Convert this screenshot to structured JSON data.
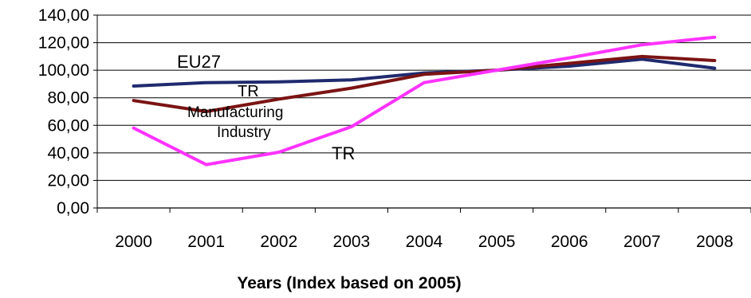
{
  "chart_data": {
    "type": "line",
    "title": "",
    "xlabel": "Years (Index based on 2005)",
    "ylabel": "",
    "categories": [
      "2000",
      "2001",
      "2002",
      "2003",
      "2004",
      "2005",
      "2006",
      "2007",
      "2008"
    ],
    "y_ticks": [
      "0,00",
      "20,00",
      "40,00",
      "60,00",
      "80,00",
      "100,00",
      "120,00",
      "140,00"
    ],
    "ylim": [
      0,
      140
    ],
    "grid": "horizontal",
    "legend": "none (inline labels)",
    "series": [
      {
        "name": "EU27",
        "color": "#1f2a6e",
        "values": [
          88.5,
          91,
          91.5,
          93,
          98,
          100,
          103,
          108,
          101.5
        ]
      },
      {
        "name": "TR Manufacturing Industry",
        "color": "#7b1414",
        "values": [
          78,
          70,
          79,
          87,
          97,
          100,
          105,
          110,
          107
        ]
      },
      {
        "name": "TR",
        "color": "#ff33ff",
        "values": [
          58,
          31.5,
          40.5,
          59,
          91,
          100,
          109,
          118.5,
          124
        ]
      }
    ],
    "annotations": [
      {
        "text": "EU27",
        "series": "EU27"
      },
      {
        "text": "TR",
        "series": "TR Manufacturing Industry"
      },
      {
        "text": "Manufacturing",
        "series": "TR Manufacturing Industry"
      },
      {
        "text": "Industry",
        "series": "TR Manufacturing Industry"
      },
      {
        "text": "TR",
        "series": "TR"
      }
    ]
  }
}
